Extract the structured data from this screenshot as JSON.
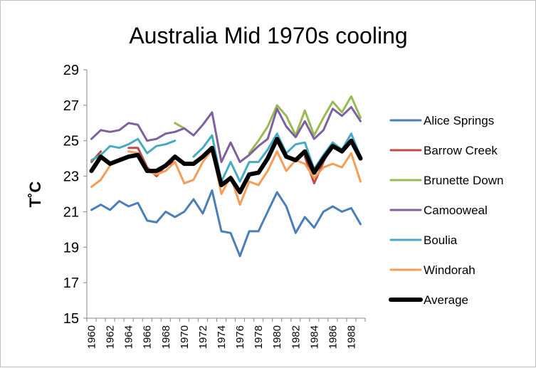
{
  "chart_data": {
    "type": "line",
    "title": "Australia Mid 1970s cooling",
    "xlabel": "",
    "ylabel": "T˚C",
    "ylim": [
      15,
      29
    ],
    "yticks": [
      15,
      17,
      19,
      21,
      23,
      25,
      27,
      29
    ],
    "x": [
      1960,
      1961,
      1962,
      1963,
      1964,
      1965,
      1966,
      1967,
      1968,
      1969,
      1970,
      1971,
      1972,
      1973,
      1974,
      1975,
      1976,
      1977,
      1978,
      1979,
      1980,
      1981,
      1982,
      1983,
      1984,
      1985,
      1986,
      1987,
      1988,
      1989
    ],
    "xtick_labels": [
      "1960",
      "1962",
      "1964",
      "1966",
      "1968",
      "1970",
      "1972",
      "1974",
      "1976",
      "1978",
      "1980",
      "1982",
      "1984",
      "1986",
      "1988"
    ],
    "grid": false,
    "legend_position": "right",
    "series": [
      {
        "name": "Alice Springs",
        "color": "#4a7ebb",
        "values": [
          21.1,
          21.4,
          21.1,
          21.6,
          21.3,
          21.5,
          20.5,
          20.4,
          21.0,
          20.7,
          21.0,
          21.7,
          20.9,
          22.2,
          19.9,
          19.8,
          18.5,
          19.9,
          19.9,
          21.0,
          22.1,
          21.3,
          19.8,
          20.7,
          20.1,
          21.0,
          21.3,
          21.0,
          21.2,
          20.3
        ]
      },
      {
        "name": "Barrow Creek",
        "color": "#be4b48",
        "values": [
          23.8,
          24.4,
          null,
          null,
          24.6,
          24.6,
          23.5,
          23.0,
          23.6,
          23.8,
          null,
          24.1,
          null,
          null,
          null,
          null,
          null,
          null,
          null,
          null,
          null,
          null,
          null,
          24.1,
          22.6,
          23.8,
          24.8,
          24.5,
          null,
          null
        ]
      },
      {
        "name": "Brunette Down",
        "color": "#98b954",
        "values": [
          null,
          null,
          null,
          null,
          null,
          null,
          null,
          null,
          null,
          26.0,
          25.7,
          null,
          null,
          null,
          null,
          null,
          null,
          24.3,
          25.0,
          25.8,
          27.0,
          26.4,
          25.3,
          26.7,
          25.3,
          26.3,
          27.2,
          26.6,
          27.5,
          26.3
        ]
      },
      {
        "name": "Camooweal",
        "color": "#7d60a0",
        "values": [
          25.1,
          25.6,
          25.5,
          25.6,
          26.0,
          25.9,
          25.0,
          25.1,
          25.4,
          25.5,
          25.7,
          25.3,
          25.9,
          26.6,
          23.8,
          24.9,
          23.8,
          24.2,
          24.7,
          25.1,
          26.8,
          25.8,
          25.2,
          26.1,
          25.1,
          25.6,
          26.8,
          26.4,
          26.9,
          26.1
        ]
      },
      {
        "name": "Boulia",
        "color": "#46aac5",
        "values": [
          23.9,
          24.2,
          24.7,
          24.6,
          24.8,
          25.1,
          24.3,
          24.7,
          24.8,
          25.0,
          null,
          24.1,
          24.6,
          25.3,
          22.7,
          23.8,
          22.7,
          23.8,
          23.8,
          24.5,
          25.4,
          24.3,
          24.8,
          24.9,
          23.4,
          24.2,
          24.9,
          24.5,
          25.4,
          24.1
        ]
      },
      {
        "name": "Windorah",
        "color": "#f59d56",
        "values": [
          22.4,
          22.8,
          23.6,
          null,
          24.4,
          24.3,
          23.3,
          23.1,
          23.3,
          23.8,
          22.6,
          22.8,
          23.8,
          24.5,
          22.0,
          23.0,
          21.4,
          22.7,
          22.5,
          23.3,
          24.4,
          23.3,
          23.9,
          23.7,
          22.9,
          23.5,
          23.7,
          23.5,
          24.3,
          22.7
        ]
      },
      {
        "name": "Average",
        "color": "#000000",
        "values": [
          23.3,
          24.1,
          23.7,
          23.9,
          24.1,
          24.2,
          23.3,
          23.3,
          23.6,
          24.1,
          23.7,
          23.7,
          24.1,
          24.6,
          22.5,
          22.9,
          22.1,
          23.1,
          23.2,
          24.0,
          25.1,
          24.1,
          23.9,
          24.4,
          23.2,
          24.0,
          24.7,
          24.4,
          25.0,
          24.0
        ]
      }
    ]
  }
}
